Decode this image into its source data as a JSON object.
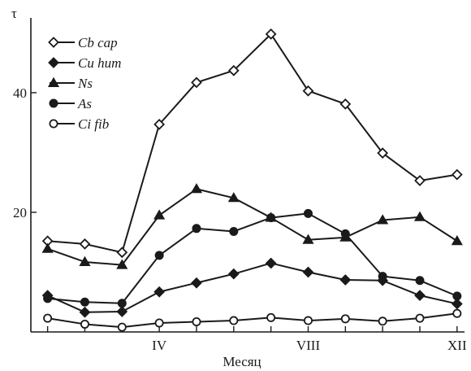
{
  "chart_data": {
    "type": "line",
    "ylabel": "τ",
    "xlabel": "Месяц",
    "x": [
      1,
      2,
      3,
      4,
      5,
      6,
      7,
      8,
      9,
      10,
      11,
      12
    ],
    "xticks": [
      {
        "value": 4,
        "label": "IV"
      },
      {
        "value": 8,
        "label": "VIII"
      },
      {
        "value": 12,
        "label": "XII"
      }
    ],
    "yticks": [
      20,
      40
    ],
    "xlim": [
      0.55,
      12.2
    ],
    "ylim": [
      0,
      52.5
    ],
    "grid": false,
    "legend_position": "top-left",
    "series": [
      {
        "name": "Cb cap",
        "marker": "open-diamond",
        "values": [
          15.2,
          14.7,
          13.3,
          34.7,
          41.7,
          43.7,
          49.8,
          40.3,
          38.1,
          29.9,
          25.3,
          26.3
        ]
      },
      {
        "name": "Cu hum",
        "marker": "filled-diamond",
        "values": [
          6.1,
          3.3,
          3.4,
          6.7,
          8.2,
          9.7,
          11.5,
          10.0,
          8.7,
          8.6,
          6.1,
          4.7
        ]
      },
      {
        "name": "Ns",
        "marker": "filled-triangle",
        "values": [
          13.9,
          11.7,
          11.2,
          19.5,
          23.9,
          22.4,
          19.1,
          15.4,
          15.8,
          18.7,
          19.2,
          15.2
        ]
      },
      {
        "name": "As",
        "marker": "filled-circle",
        "values": [
          5.6,
          5.0,
          4.8,
          12.8,
          17.3,
          16.8,
          19.1,
          19.8,
          16.4,
          9.3,
          8.6,
          6.0
        ]
      },
      {
        "name": "Ci fib",
        "marker": "open-circle",
        "values": [
          2.3,
          1.3,
          0.8,
          1.5,
          1.7,
          1.9,
          2.4,
          1.9,
          2.2,
          1.8,
          2.3,
          3.1
        ]
      }
    ]
  }
}
